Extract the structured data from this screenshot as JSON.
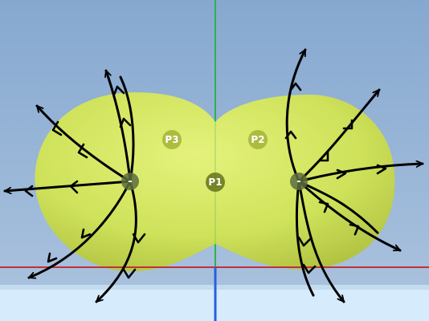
{
  "scene": {
    "background_top": "#8fb0d6",
    "background_bottom": "#a9c2de",
    "floor_color": "#d7ecfb",
    "surface_color": "#d9ec6a",
    "surface_shade": "#b6c94a",
    "axis_colors": {
      "x": "#c2303a",
      "y": "#2db24a",
      "z": "#2b5fe0"
    },
    "field_line_color": "#000000"
  },
  "charges": [
    {
      "id": "left",
      "sign": "-"
    },
    {
      "id": "right",
      "sign": "-"
    }
  ],
  "points": [
    {
      "id": "p1",
      "label": "P1"
    },
    {
      "id": "p2",
      "label": "P2"
    },
    {
      "id": "p3",
      "label": "P3"
    }
  ]
}
